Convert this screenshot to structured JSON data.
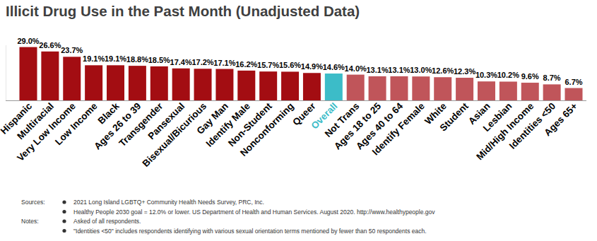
{
  "chart_data": {
    "type": "bar",
    "title": "Illicit Drug Use in the Past Month (Unadjusted Data)",
    "categories": [
      "Hispanic",
      "Multiracial",
      "Very Low Income",
      "Low Income",
      "Black",
      "Ages 26 to 39",
      "Transgender",
      "Pansexual",
      "Bisexual/Bicurious",
      "Gay Man",
      "Identify Male",
      "Non-Student",
      "Nonconforming",
      "Queer",
      "Overall",
      "Not Trans",
      "Ages 18 to 25",
      "Ages 40 to 64",
      "Identify Female",
      "White",
      "Student",
      "Asian",
      "Lesbian",
      "Mid/High Income",
      "Identities <50",
      "Ages 65+"
    ],
    "values": [
      29.0,
      26.6,
      23.7,
      19.1,
      19.1,
      18.8,
      18.5,
      17.4,
      17.2,
      17.1,
      16.2,
      15.7,
      15.6,
      14.9,
      14.6,
      14.0,
      13.1,
      13.1,
      13.0,
      12.6,
      12.3,
      10.3,
      10.2,
      9.6,
      8.7,
      6.7
    ],
    "value_labels": [
      "29.0%",
      "26.6%",
      "23.7%",
      "19.1%",
      "19.1%",
      "18.8%",
      "18.5%",
      "17.4%",
      "17.2%",
      "17.1%",
      "16.2%",
      "15.7%",
      "15.6%",
      "14.9%",
      "14.6%",
      "14.0%",
      "13.1%",
      "13.1%",
      "13.0%",
      "12.6%",
      "12.3%",
      "10.3%",
      "10.2%",
      "9.6%",
      "8.7%",
      "6.7%"
    ],
    "colors": [
      "#a30d12",
      "#a30d12",
      "#a30d12",
      "#a30d12",
      "#a30d12",
      "#a30d12",
      "#a30d12",
      "#a30d12",
      "#a30d12",
      "#a30d12",
      "#a30d12",
      "#a30d12",
      "#a30d12",
      "#a30d12",
      "#3cbcc8",
      "#c0555a",
      "#c0555a",
      "#c0555a",
      "#c0555a",
      "#c0555a",
      "#c0555a",
      "#c0555a",
      "#c0555a",
      "#c0555a",
      "#c0555a",
      "#c0555a"
    ],
    "ylim": [
      0,
      30
    ],
    "data_labels": true,
    "tick_labels": false,
    "grid": false,
    "annotations": [
      {
        "label": "Sources:",
        "items": [
          "2021 Long Island LGBTQ+ Community Health Needs Survey, PRC, Inc.",
          "Healthy People 2030 goal = 12.0% or lower. US Department of Health and Human Services. August 2020. http://www.healthypeople.gov"
        ]
      },
      {
        "label": "Notes:",
        "items": [
          "Asked of all respondents.",
          "\"Identities <50\" includes respondents identifying with various sexual orientation terms mentioned by fewer than 50 respondents each."
        ]
      }
    ]
  }
}
